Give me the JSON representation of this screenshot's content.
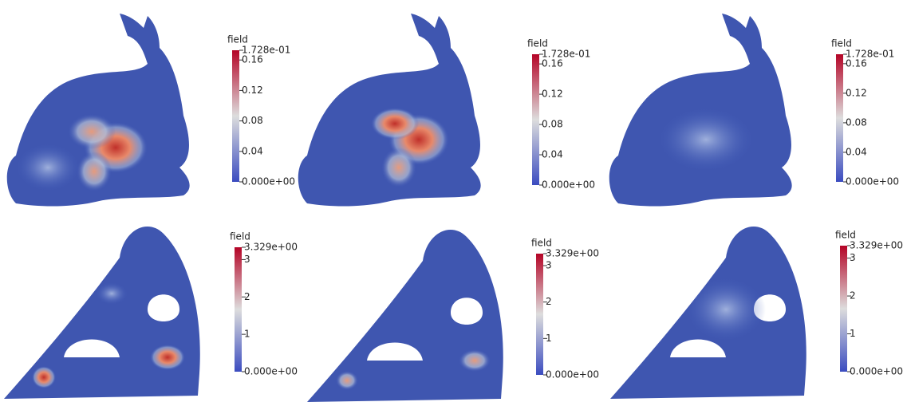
{
  "panels": [
    {
      "colorbar": {
        "title": "field",
        "lim": [
          0,
          0.1728
        ],
        "ticks": [
          {
            "value": 0,
            "label": "0.000e+00"
          },
          0.04,
          0.08,
          0.12,
          0.16,
          {
            "value": 0.1728,
            "label": "1.728e-01"
          }
        ]
      }
    },
    {
      "colorbar": {
        "title": "field",
        "lim": [
          0,
          0.1728
        ],
        "ticks": [
          {
            "value": 0,
            "label": "0.000e+00"
          },
          0.04,
          0.08,
          0.12,
          0.16,
          {
            "value": 0.1728,
            "label": "1.728e-01"
          }
        ]
      }
    },
    {
      "colorbar": {
        "title": "field",
        "lim": [
          0,
          0.1728
        ],
        "ticks": [
          {
            "value": 0,
            "label": "0.000e+00"
          },
          0.04,
          0.08,
          0.12,
          0.16,
          {
            "value": 0.1728,
            "label": "1.728e-01"
          }
        ]
      }
    },
    {
      "colorbar": {
        "title": "field",
        "lim": [
          0,
          3.329
        ],
        "ticks": [
          {
            "value": 0,
            "label": "0.000e+00"
          },
          1,
          2,
          3,
          {
            "value": 3.329,
            "label": "3.329e+00"
          }
        ]
      }
    },
    {
      "colorbar": {
        "title": "field",
        "lim": [
          0,
          3.329
        ],
        "ticks": [
          {
            "value": 0,
            "label": "0.000e+00"
          },
          1,
          2,
          3,
          {
            "value": 3.329,
            "label": "3.329e+00"
          }
        ]
      }
    },
    {
      "colorbar": {
        "title": "field",
        "lim": [
          0,
          3.329
        ],
        "ticks": [
          {
            "value": 0,
            "label": "0.000e+00"
          },
          1,
          2,
          3,
          {
            "value": 3.329,
            "label": "3.329e+00"
          }
        ]
      }
    }
  ]
}
